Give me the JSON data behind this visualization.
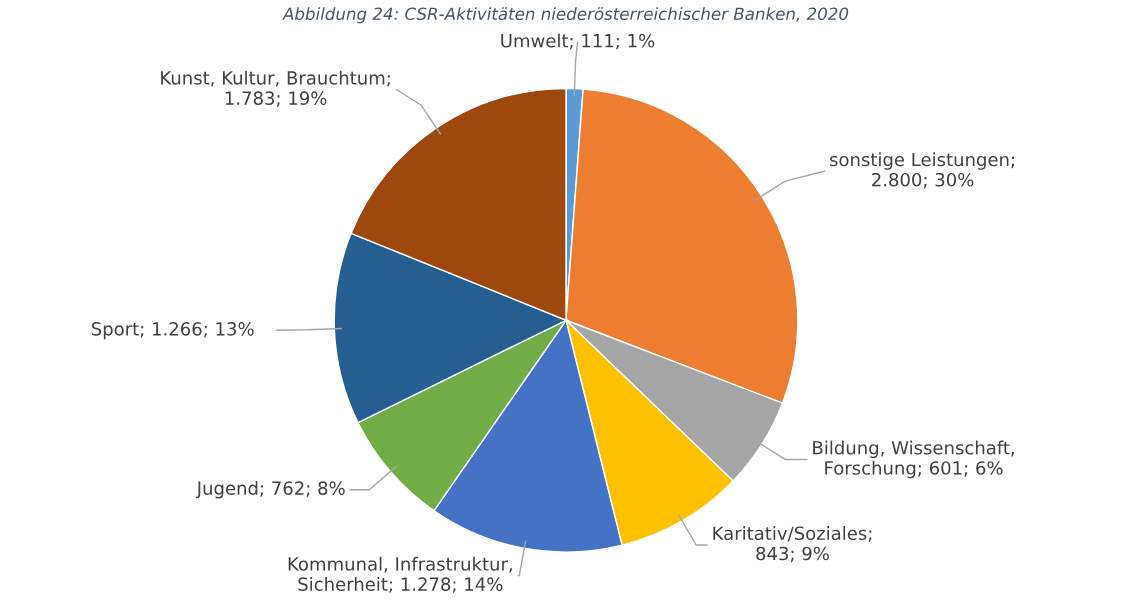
{
  "chart_data": {
    "type": "pie",
    "title": "Abbildung 24: CSR-Aktivitäten niederösterreichischer Banken, 2020",
    "categories": [
      "Umwelt",
      "sonstige Leistungen",
      "Bildung, Wissenschaft, Forschung",
      "Karitativ/Soziales",
      "Kommunal, Infrastruktur, Sicherheit",
      "Jugend",
      "Sport",
      "Kunst, Kultur, Brauchtum"
    ],
    "values": [
      111,
      2800,
      601,
      843,
      1278,
      762,
      1266,
      1783
    ],
    "colors": [
      "#5b9bd5",
      "#ed7d31",
      "#a5a5a5",
      "#ffc000",
      "#4472c4",
      "#70ad47",
      "#255e91",
      "#9e480e"
    ],
    "value_labels": [
      "; 111; 1%",
      "; 2.800; 30%",
      "; 601; 6%",
      "; 843; 9%",
      "; 1.278; 14%",
      "; 762; 8%",
      "; 1.266; 13%",
      "; 1.783; 19%"
    ],
    "legend": false
  }
}
